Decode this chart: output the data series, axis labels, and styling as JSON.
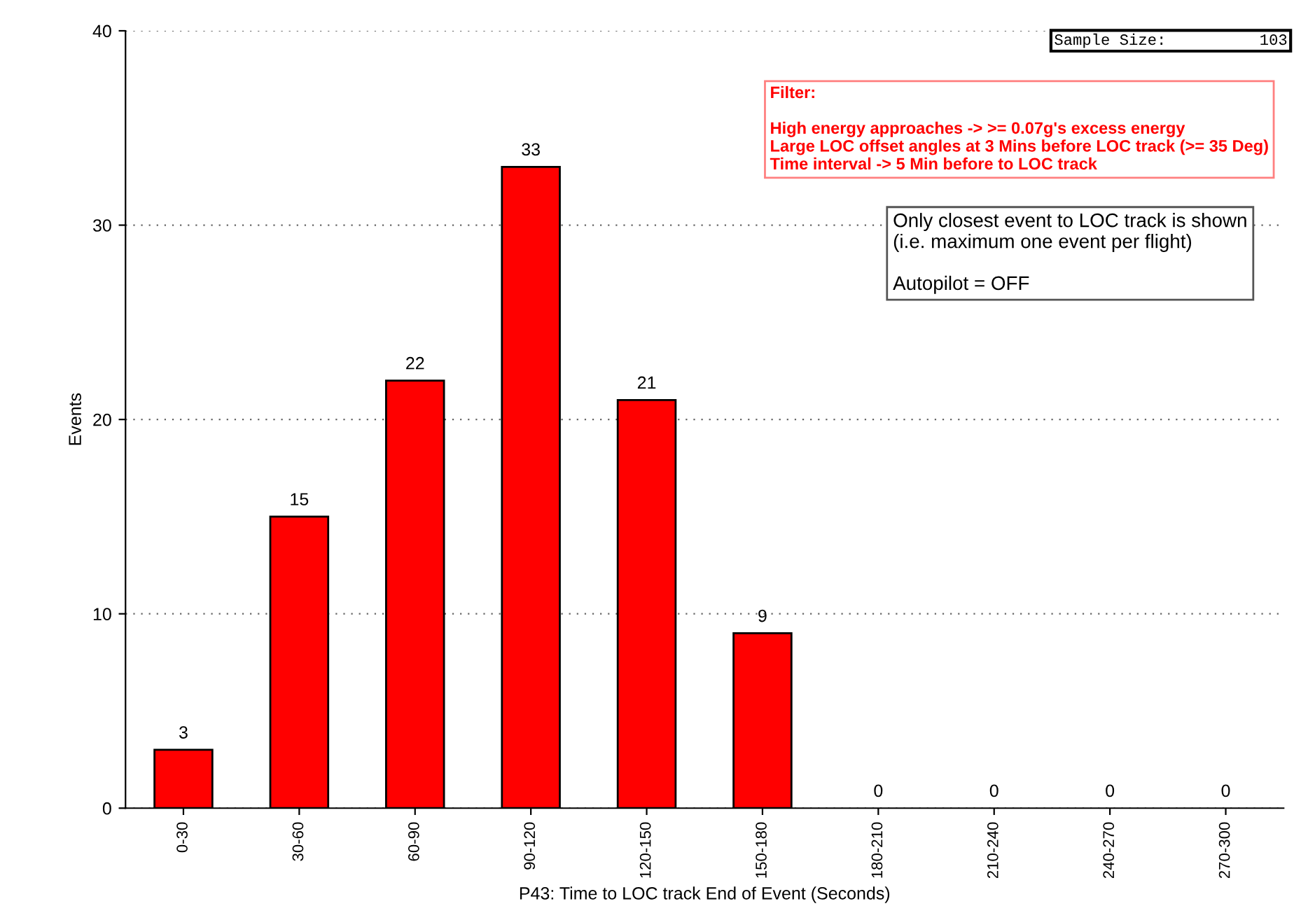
{
  "chart_data": {
    "type": "bar",
    "xlabel": "P43: Time to LOC track End of Event (Seconds)",
    "ylabel": "Events",
    "categories": [
      "0-30",
      "30-60",
      "60-90",
      "90-120",
      "120-150",
      "150-180",
      "180-210",
      "210-240",
      "240-270",
      "270-300"
    ],
    "values": [
      3,
      15,
      22,
      33,
      21,
      9,
      0,
      0,
      0,
      0
    ],
    "color": "#ff0000",
    "data_labels": true,
    "ylim": [
      0,
      40
    ],
    "yticks": [
      0,
      10,
      20,
      30,
      40
    ],
    "grid": "y",
    "legend": false,
    "annotations": [
      "Sample Size:          103",
      "Filter:\n\nHigh energy approaches -> >= 0.07g's excess energy\nLarge LOC offset angles at 3 Mins before LOC track (>= 35 Deg)\nTime interval -> 5 Min before to LOC track",
      "Only closest event to LOC track is shown\n(i.e. maximum one event per flight)\n\nAutopilot = OFF"
    ]
  }
}
